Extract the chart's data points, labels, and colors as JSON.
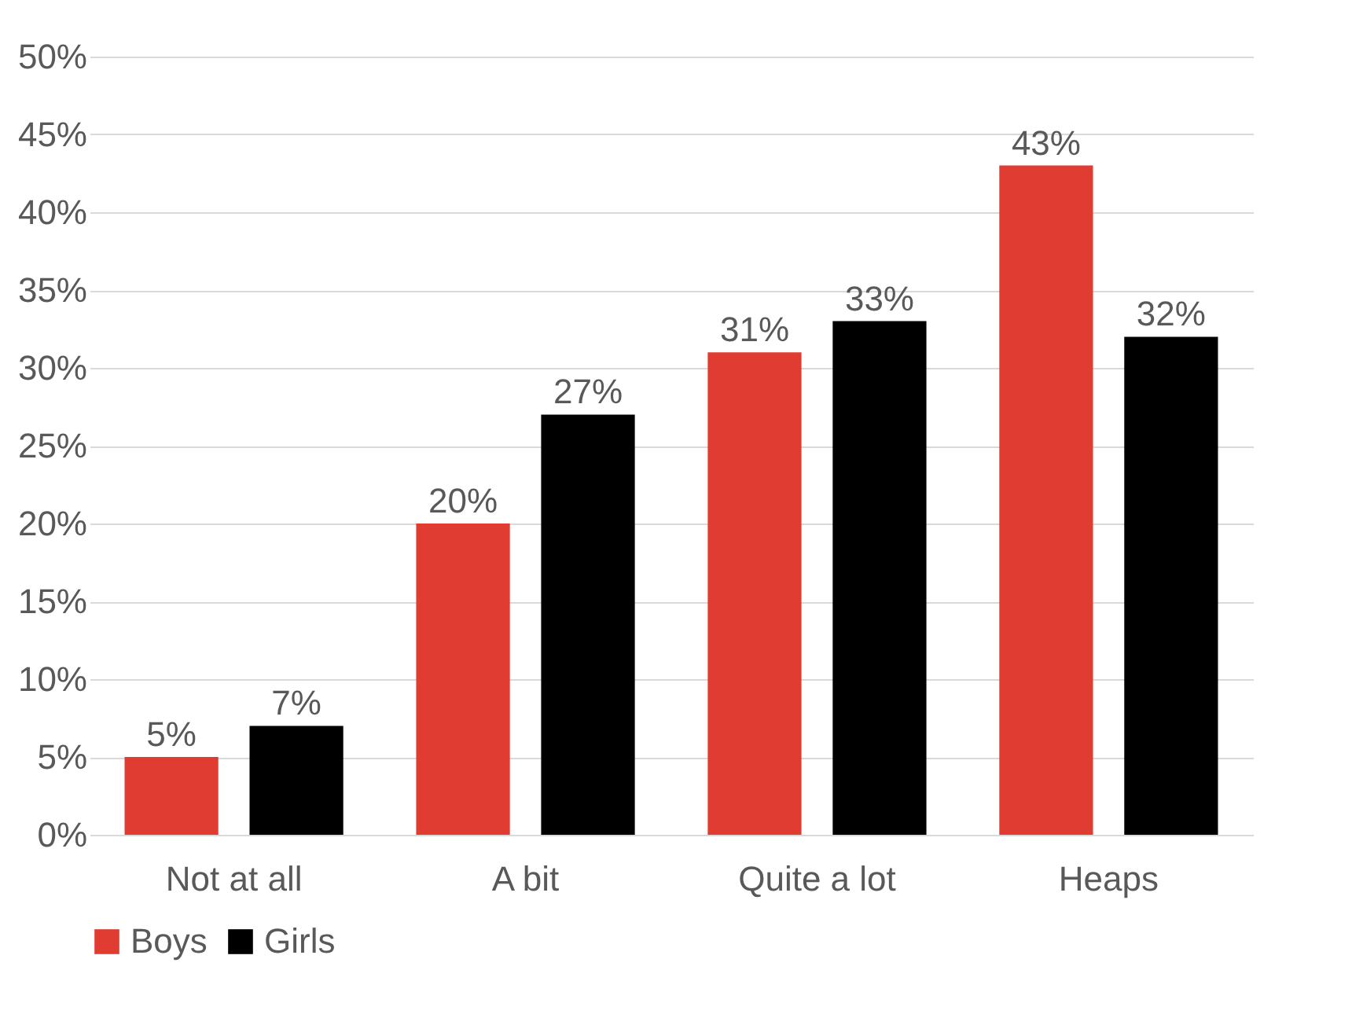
{
  "chart_data": {
    "type": "bar",
    "categories": [
      "Not at all",
      "A bit",
      "Quite a lot",
      "Heaps"
    ],
    "series": [
      {
        "name": "Boys",
        "color": "#e03c31",
        "values": [
          5,
          20,
          31,
          43
        ],
        "value_labels": [
          "5%",
          "20%",
          "31%",
          "43%"
        ]
      },
      {
        "name": "Girls",
        "color": "#000000",
        "values": [
          7,
          27,
          33,
          32
        ],
        "value_labels": [
          "7%",
          "27%",
          "33%",
          "32%"
        ]
      }
    ],
    "ylim": [
      0,
      50
    ],
    "yticks": [
      {
        "value": 0,
        "label": "0%"
      },
      {
        "value": 5,
        "label": "5%"
      },
      {
        "value": 10,
        "label": "10%"
      },
      {
        "value": 15,
        "label": "15%"
      },
      {
        "value": 20,
        "label": "20%"
      },
      {
        "value": 25,
        "label": "25%"
      },
      {
        "value": 30,
        "label": "30%"
      },
      {
        "value": 35,
        "label": "35%"
      },
      {
        "value": 40,
        "label": "40%"
      },
      {
        "value": 45,
        "label": "45%"
      },
      {
        "value": 50,
        "label": "50%"
      }
    ],
    "grid": "y",
    "legend": "bottom"
  }
}
